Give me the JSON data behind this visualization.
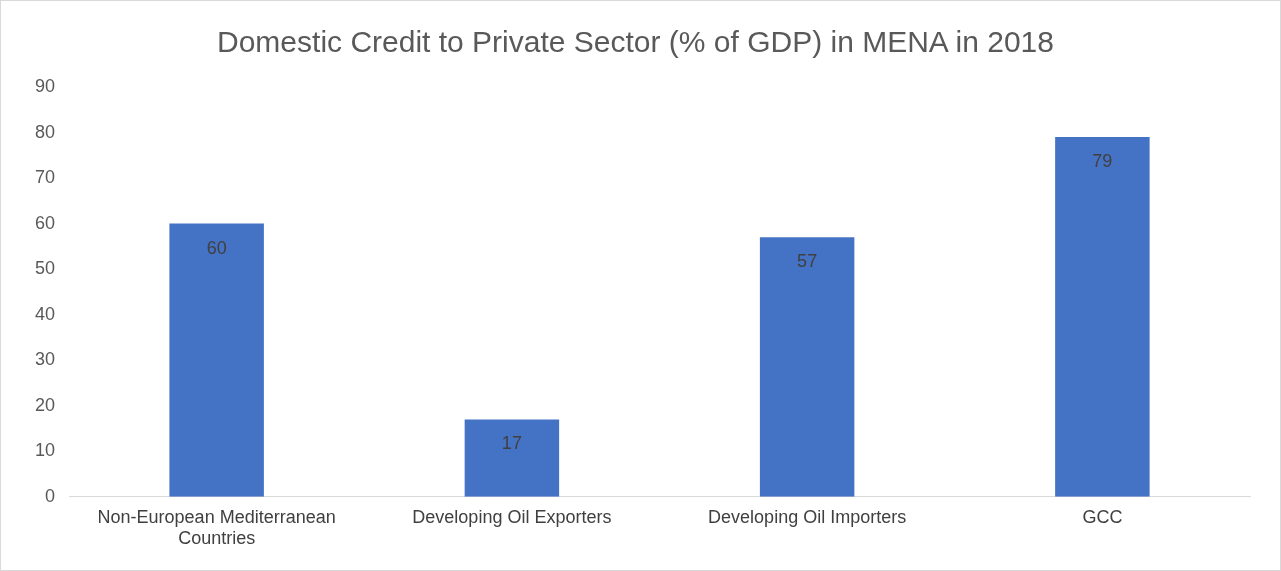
{
  "chart_data": {
    "type": "bar",
    "title": "Domestic Credit to Private Sector (% of GDP) in MENA in 2018",
    "categories": [
      "Non-European Mediterranean Countries",
      "Developing Oil Exporters",
      "Developing Oil Importers",
      "GCC"
    ],
    "values": [
      60,
      17,
      57,
      79
    ],
    "color": "#4472c4",
    "ylim": [
      0,
      90
    ],
    "yticks": [
      0,
      10,
      20,
      30,
      40,
      50,
      60,
      70,
      80,
      90
    ],
    "grid": false,
    "data_labels": true
  }
}
